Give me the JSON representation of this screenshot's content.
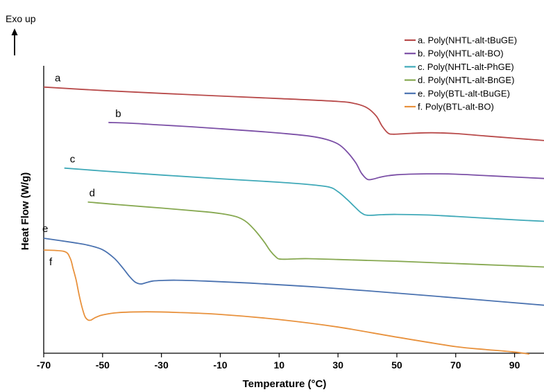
{
  "chart_data": {
    "type": "line",
    "xlabel": "Temperature (°C)",
    "ylabel": "Heat Flow (W/g)",
    "annotation": "Exo up",
    "xlim": [
      -70,
      100
    ],
    "ylim": [
      0,
      100
    ],
    "xticks": [
      "-70",
      "-50",
      "-30",
      "-10",
      "10",
      "30",
      "50",
      "70",
      "90"
    ],
    "xtick_values": [
      -70,
      -50,
      -30,
      -10,
      10,
      30,
      50,
      70,
      90
    ],
    "legend_position": "top-right",
    "series": [
      {
        "name": "a. Poly(NHTL-alt-tBuGE)",
        "label": "a",
        "color": "#b84a4a",
        "x": [
          -70,
          -50,
          -30,
          -10,
          10,
          30,
          36,
          40,
          43,
          45,
          47,
          49,
          55,
          62,
          70,
          80,
          90,
          100
        ],
        "y": [
          92.6,
          91.4,
          90.4,
          89.5,
          88.6,
          87.6,
          86.8,
          85.3,
          82.5,
          79.0,
          76.6,
          76.2,
          76.5,
          76.7,
          76.4,
          75.6,
          74.8,
          74.0
        ]
      },
      {
        "name": "b. Poly(NHTL-alt-BO)",
        "label": "b",
        "color": "#7b4fa6",
        "x": [
          -48,
          -40,
          -30,
          -20,
          -10,
          0,
          10,
          20,
          26,
          30,
          33,
          36,
          38,
          40,
          42,
          45,
          50,
          60,
          70,
          80,
          90,
          100
        ],
        "y": [
          80.3,
          80.0,
          79.4,
          78.8,
          78.1,
          77.4,
          76.6,
          75.6,
          74.4,
          72.8,
          70.2,
          66.3,
          62.6,
          60.5,
          60.6,
          61.4,
          62.1,
          62.4,
          62.3,
          61.8,
          61.3,
          60.8
        ]
      },
      {
        "name": "c. Poly(NHTL-alt-PhGE)",
        "label": "c",
        "color": "#3fa9b8",
        "x": [
          -63,
          -50,
          -30,
          -10,
          10,
          20,
          27,
          30,
          33,
          36,
          38,
          40,
          45,
          50,
          60,
          70,
          80,
          90,
          100
        ],
        "y": [
          64.4,
          63.4,
          62.0,
          60.7,
          59.5,
          58.7,
          57.8,
          56.2,
          53.6,
          50.6,
          48.8,
          48.0,
          48.2,
          48.3,
          48.1,
          47.6,
          47.0,
          46.4,
          45.9
        ]
      },
      {
        "name": "d. Poly(NHTL-alt-BnGE)",
        "label": "d",
        "color": "#86a850",
        "x": [
          -55,
          -45,
          -30,
          -15,
          -8,
          -4,
          -1,
          2,
          5,
          7,
          9,
          10,
          12,
          15,
          20,
          30,
          40,
          50,
          60,
          70,
          80,
          90,
          100
        ],
        "y": [
          52.6,
          51.7,
          50.5,
          49.2,
          48.3,
          47.3,
          45.6,
          42.5,
          38.6,
          35.6,
          33.4,
          32.8,
          32.7,
          32.8,
          32.9,
          32.6,
          32.3,
          32.0,
          31.6,
          31.2,
          30.8,
          30.4,
          30.0
        ]
      },
      {
        "name": "e. Poly(BTL-alt-tBuGE)",
        "label": "e",
        "color": "#4a72b0",
        "x": [
          -70,
          -60,
          -55,
          -50,
          -46,
          -43,
          -41,
          -39,
          -37,
          -35,
          -33,
          -30,
          -25,
          -15,
          0,
          20,
          40,
          60,
          80,
          100
        ],
        "y": [
          40.0,
          38.5,
          37.6,
          36.0,
          33.0,
          29.5,
          26.9,
          24.8,
          24.1,
          24.6,
          25.1,
          25.3,
          25.4,
          25.1,
          24.4,
          23.2,
          21.7,
          20.1,
          18.4,
          16.7
        ]
      },
      {
        "name": "f. Poly(BTL-alt-BO)",
        "label": "f",
        "color": "#e8913c",
        "x": [
          -70,
          -63,
          -61,
          -60,
          -59,
          -58,
          -57,
          -56,
          -55,
          -54,
          -53,
          -52,
          -50,
          -45,
          -35,
          -25,
          -10,
          10,
          30,
          50,
          70,
          80,
          90,
          95
        ],
        "y": [
          35.9,
          35.4,
          33.0,
          29.4,
          25.5,
          20.4,
          16.1,
          12.8,
          11.6,
          11.5,
          12.1,
          12.6,
          13.3,
          14.1,
          14.4,
          14.2,
          13.5,
          11.7,
          9.1,
          5.6,
          2.3,
          1.3,
          0.4,
          -0.3
        ]
      }
    ]
  }
}
